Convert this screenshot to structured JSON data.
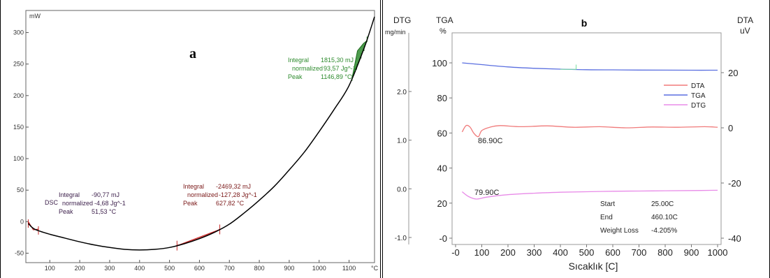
{
  "chart_data": [
    {
      "panel": "a",
      "type": "line",
      "panel_label": "a",
      "xlabel": "°C",
      "ylabel": "mW",
      "xlim": [
        20,
        1185
      ],
      "ylim": [
        -65,
        335
      ],
      "x_ticks": [
        "100",
        "200",
        "300",
        "400",
        "500",
        "600",
        "700",
        "800",
        "900",
        "1000",
        "1100"
      ],
      "x_tick_values": [
        100,
        200,
        300,
        400,
        500,
        600,
        700,
        800,
        900,
        1000,
        1100
      ],
      "y_ticks": [
        "300",
        "250",
        "200",
        "150",
        "100",
        "50",
        "0",
        "-50"
      ],
      "y_tick_values": [
        300,
        250,
        200,
        150,
        100,
        50,
        0,
        -50
      ],
      "series": [
        {
          "name": "DSC",
          "x": [
            28,
            50,
            100,
            150,
            200,
            250,
            300,
            350,
            400,
            450,
            500,
            550,
            600,
            650,
            700,
            750,
            800,
            850,
            900,
            950,
            1000,
            1050,
            1100,
            1150,
            1185
          ],
          "y": [
            -3,
            -12,
            -20,
            -26,
            -32,
            -37,
            -41,
            -44,
            -45,
            -44,
            -41,
            -35,
            -27,
            -17,
            -4,
            14,
            34,
            56,
            82,
            110,
            143,
            178,
            216,
            275,
            325
          ]
        }
      ],
      "annotations": [
        {
          "name": "DSC",
          "labels": [
            "Integral",
            "normalized",
            "Peak"
          ],
          "values": [
            "-90,77 mJ",
            "-4,68 Jg^-1",
            "51,53 °C"
          ],
          "color": "#3b1e4a"
        },
        {
          "labels": [
            "Integral",
            "normalized",
            "Peak"
          ],
          "values": [
            "-2469,32 mJ",
            "-127,28 Jg^-1",
            "627,82 °C"
          ],
          "color": "#7a1818"
        },
        {
          "labels": [
            "Integral",
            "normalized",
            "Peak"
          ],
          "values": [
            "1815,30 mJ",
            "93,57 Jg^-1",
            "1146,89 °C"
          ],
          "color": "#2e8b2e"
        }
      ]
    },
    {
      "panel": "b",
      "type": "line",
      "panel_label": "b",
      "xlabel": "Sıcaklık [C]",
      "xlim": [
        -50,
        1050
      ],
      "x_ticks": [
        "-0",
        "100",
        "200",
        "300",
        "400",
        "500",
        "600",
        "700",
        "800",
        "900",
        "1000"
      ],
      "x_tick_values": [
        0,
        100,
        200,
        300,
        400,
        500,
        600,
        700,
        800,
        900,
        1000
      ],
      "axes": {
        "dtg": {
          "title_top": "DTG",
          "title_bottom": "mg/min",
          "ticks": [
            "2.0",
            "1.0",
            "0.0",
            "-1.0"
          ],
          "tick_values": [
            2.0,
            1.0,
            0.0,
            -1.0
          ],
          "range": [
            -1.5,
            2.5
          ]
        },
        "tga": {
          "title_top": "TGA",
          "title_bottom": "%",
          "ticks": [
            "100",
            "80",
            "60",
            "40",
            "20",
            "-0"
          ],
          "tick_values": [
            100,
            80,
            60,
            40,
            20,
            0
          ],
          "range": [
            -10,
            110
          ]
        },
        "dta": {
          "title_top": "DTA",
          "title_bottom": "uV",
          "ticks": [
            "20",
            "0",
            "-20",
            "-40"
          ],
          "tick_values": [
            20,
            0,
            -20,
            -40
          ],
          "range": [
            -45,
            35
          ]
        }
      },
      "legend": {
        "position": "right",
        "entries": [
          "DTA",
          "TGA",
          "DTG"
        ]
      },
      "series": [
        {
          "name": "DTA",
          "axis": "dta",
          "color": "#f07a7a",
          "x": [
            25,
            40,
            55,
            70,
            86.9,
            100,
            130,
            170,
            250,
            350,
            450,
            550,
            650,
            750,
            850,
            950,
            1000
          ],
          "y": [
            -1.5,
            0.8,
            0.3,
            -2.0,
            -3.2,
            -1.0,
            0.2,
            0.8,
            0.4,
            0.7,
            0.2,
            0.4,
            0.0,
            0.3,
            0.2,
            0.4,
            0.2
          ]
        },
        {
          "name": "TGA",
          "axis": "tga",
          "color": "#5a6fe0",
          "x": [
            25,
            100,
            200,
            300,
            400,
            500,
            600,
            700,
            800,
            900,
            1000
          ],
          "y": [
            100,
            99,
            97.7,
            96.9,
            96.4,
            96.1,
            96.0,
            95.9,
            95.85,
            95.8,
            95.8
          ]
        },
        {
          "name": "DTG",
          "axis": "dtg",
          "color": "#e88be8",
          "x": [
            25,
            50,
            79.9,
            120,
            200,
            300,
            400,
            500,
            600,
            700,
            800,
            900,
            1000
          ],
          "y": [
            -0.06,
            -0.16,
            -0.21,
            -0.17,
            -0.12,
            -0.09,
            -0.07,
            -0.06,
            -0.05,
            -0.045,
            -0.04,
            -0.035,
            -0.03
          ]
        },
        {
          "name": "",
          "axis": "tga",
          "color": "#7ae0a0",
          "x": [
            400,
            460,
            460
          ],
          "y": [
            96.3,
            96.3,
            99
          ]
        }
      ],
      "annotations": [
        {
          "text": "86.90C",
          "series": "DTA"
        },
        {
          "text": "79.90C",
          "series": "DTG"
        }
      ],
      "info": {
        "labels": [
          "Start",
          "End",
          "Weight Loss"
        ],
        "values": [
          "25.00C",
          "460.10C",
          "-4.205%"
        ]
      }
    }
  ]
}
